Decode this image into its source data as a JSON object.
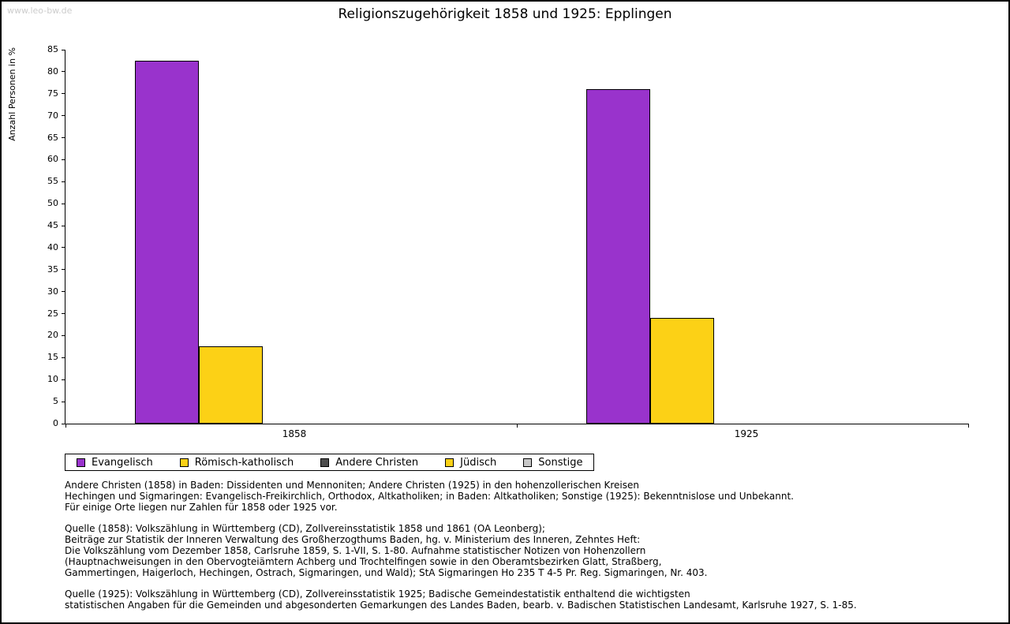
{
  "watermark": "www.leo-bw.de",
  "title": "Religionszugehörigkeit 1858 und 1925: Epplingen",
  "chart_data": {
    "type": "bar",
    "title": "Religionszugehörigkeit 1858 und 1925: Epplingen",
    "xlabel": "",
    "ylabel": "Anzahl Personen in %",
    "ylim": [
      0,
      85
    ],
    "ytick_step": 5,
    "grid": false,
    "legend_position": "below",
    "categories": [
      "1858",
      "1925"
    ],
    "series": [
      {
        "name": "Evangelisch",
        "color": "#9933CC",
        "values": [
          82.5,
          76
        ]
      },
      {
        "name": "Römisch-katholisch",
        "color": "#FCD116",
        "values": [
          17.5,
          24
        ]
      },
      {
        "name": "Andere Christen",
        "color": "#4D4D4D",
        "values": [
          0,
          0
        ]
      },
      {
        "name": "Jüdisch",
        "color": "#FCD116",
        "values": [
          0,
          0
        ]
      },
      {
        "name": "Sonstige",
        "color": "#C8C8C8",
        "values": [
          0,
          0
        ]
      }
    ]
  },
  "footer": {
    "note": "Andere Christen (1858) in Baden: Dissidenten und Mennoniten; Andere Christen (1925) in den hohenzollerischen Kreisen\nHechingen und Sigmaringen: Evangelisch-Freikirchlich, Orthodox, Altkatholiken; in Baden: Altkatholiken; Sonstige (1925): Bekenntnislose und Unbekannt.\nFür einige Orte liegen nur Zahlen für 1858 oder 1925 vor.",
    "source_1858": "Quelle (1858): Volkszählung in Württemberg (CD), Zollvereinsstatistik 1858 und 1861 (OA Leonberg);\nBeiträge zur Statistik der Inneren Verwaltung des Großherzogthums Baden, hg. v. Ministerium des Inneren, Zehntes Heft:\nDie Volkszählung vom Dezember 1858, Carlsruhe 1859, S. 1-VII, S. 1-80. Aufnahme statistischer Notizen von Hohenzollern\n(Hauptnachweisungen in den Obervogteiämtern Achberg und Trochtelfingen sowie in den Oberamtsbezirken Glatt, Straßberg,\nGammertingen, Haigerloch, Hechingen, Ostrach, Sigmaringen, und Wald); StA Sigmaringen Ho 235 T 4-5 Pr. Reg. Sigmaringen, Nr. 403.",
    "source_1925": "Quelle (1925): Volkszählung in Württemberg (CD), Zollvereinsstatistik 1925; Badische Gemeindestatistik enthaltend die wichtigsten\nstatistischen Angaben für die Gemeinden und abgesonderten Gemarkungen des Landes Baden, bearb. v. Badischen Statistischen Landesamt, Karlsruhe 1927, S. 1-85."
  }
}
